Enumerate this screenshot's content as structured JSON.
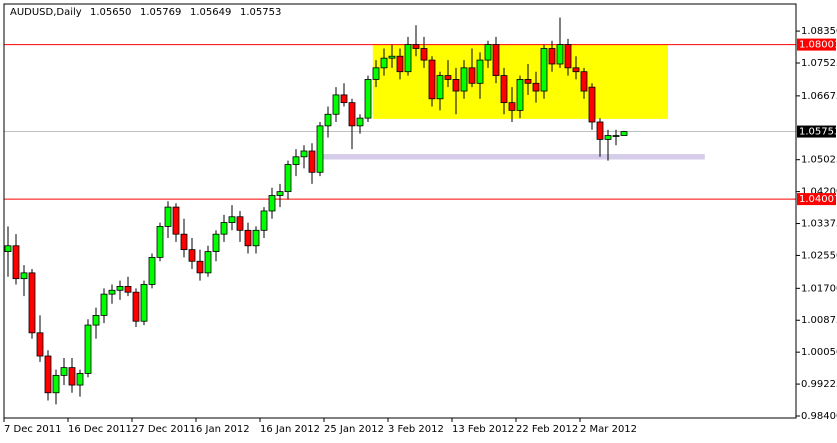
{
  "chart_data": {
    "type": "candlestick",
    "title": "AUDUSD,Daily",
    "info_labels": [
      "1.05650",
      "1.05769",
      "1.05649",
      "1.05753"
    ],
    "categories": [
      "7 Dec 2011",
      null,
      null,
      null,
      null,
      null,
      null,
      null,
      "16 Dec 2011",
      null,
      null,
      null,
      null,
      null,
      null,
      null,
      "27 Dec 2011",
      null,
      null,
      null,
      null,
      null,
      null,
      null,
      "6 Jan 2012",
      null,
      null,
      null,
      null,
      null,
      null,
      null,
      "16 Jan 2012",
      null,
      null,
      null,
      null,
      null,
      null,
      null,
      "25 Jan 2012",
      null,
      null,
      null,
      null,
      null,
      null,
      null,
      "3 Feb 2012",
      null,
      null,
      null,
      null,
      null,
      null,
      null,
      "13 Feb 2012",
      null,
      null,
      null,
      null,
      null,
      null,
      null,
      "22 Feb 2012",
      null,
      null,
      null,
      null,
      null,
      null,
      null,
      "2 Mar 2012",
      null,
      null,
      null,
      null,
      null
    ],
    "open": [
      1.0265,
      1.028,
      1.0195,
      1.021,
      1.0055,
      0.9995,
      0.99,
      0.9945,
      0.9965,
      0.992,
      0.995,
      1.0075,
      1.01,
      1.0155,
      1.0165,
      1.0175,
      1.016,
      1.0085,
      1.018,
      1.025,
      1.033,
      1.038,
      1.031,
      1.027,
      1.024,
      1.021,
      1.0265,
      1.031,
      1.034,
      1.0355,
      1.032,
      1.028,
      1.032,
      1.037,
      1.041,
      1.042,
      1.049,
      1.051,
      1.0525,
      1.047,
      1.059,
      1.062,
      1.067,
      1.065,
      1.059,
      1.061,
      1.071,
      1.074,
      1.0765,
      1.077,
      1.073,
      1.08,
      1.079,
      1.076,
      1.066,
      1.072,
      1.071,
      1.068,
      1.074,
      1.07,
      1.076,
      1.08,
      1.072,
      1.065,
      1.063,
      1.071,
      1.07,
      1.068,
      1.079,
      1.075,
      1.08,
      1.074,
      1.073,
      1.069,
      1.06,
      1.0555,
      1.0565,
      1.0565
    ],
    "high": [
      1.033,
      1.031,
      1.023,
      1.022,
      1.01,
      1.001,
      0.996,
      0.999,
      0.999,
      0.996,
      1.009,
      1.012,
      1.017,
      1.018,
      1.019,
      1.02,
      1.017,
      1.019,
      1.026,
      1.034,
      1.0395,
      1.039,
      1.035,
      1.03,
      1.027,
      1.028,
      1.032,
      1.036,
      1.0385,
      1.037,
      1.034,
      1.033,
      1.038,
      1.043,
      1.044,
      1.05,
      1.053,
      1.054,
      1.0545,
      1.06,
      1.064,
      1.069,
      1.07,
      1.066,
      1.062,
      1.072,
      1.076,
      1.079,
      1.08,
      1.079,
      1.082,
      1.085,
      1.082,
      1.077,
      1.073,
      1.076,
      1.074,
      1.076,
      1.079,
      1.078,
      1.081,
      1.082,
      1.074,
      1.069,
      1.072,
      1.075,
      1.073,
      1.08,
      1.081,
      1.087,
      1.0815,
      1.077,
      1.074,
      1.07,
      1.061,
      1.058,
      1.058,
      1.05769
    ],
    "low": [
      1.02,
      1.018,
      1.015,
      1.004,
      0.998,
      0.988,
      0.987,
      0.992,
      0.99,
      0.989,
      0.994,
      1.004,
      1.008,
      1.013,
      1.014,
      1.015,
      1.007,
      1.0075,
      1.017,
      1.024,
      1.03,
      1.029,
      1.025,
      1.022,
      1.019,
      1.02,
      1.024,
      1.029,
      1.032,
      1.029,
      1.026,
      1.026,
      1.03,
      1.035,
      1.038,
      1.04,
      1.046,
      1.048,
      1.044,
      1.046,
      1.056,
      1.06,
      1.064,
      1.053,
      1.057,
      1.06,
      1.069,
      1.072,
      1.074,
      1.071,
      1.072,
      1.077,
      1.074,
      1.064,
      1.063,
      1.069,
      1.062,
      1.066,
      1.069,
      1.066,
      1.074,
      1.07,
      1.062,
      1.06,
      1.061,
      1.067,
      1.065,
      1.066,
      1.073,
      1.074,
      1.072,
      1.071,
      1.066,
      1.058,
      1.051,
      1.05,
      1.054,
      1.05649
    ],
    "close": [
      1.028,
      1.0195,
      1.021,
      1.0055,
      0.9995,
      0.99,
      0.9945,
      0.9965,
      0.992,
      0.995,
      1.0075,
      1.01,
      1.0155,
      1.0165,
      1.0175,
      1.016,
      1.0085,
      1.018,
      1.025,
      1.033,
      1.038,
      1.031,
      1.027,
      1.024,
      1.021,
      1.0265,
      1.031,
      1.034,
      1.0355,
      1.032,
      1.028,
      1.032,
      1.037,
      1.041,
      1.042,
      1.049,
      1.051,
      1.0525,
      1.047,
      1.059,
      1.062,
      1.067,
      1.065,
      1.059,
      1.061,
      1.071,
      1.074,
      1.0765,
      1.077,
      1.073,
      1.08,
      1.079,
      1.076,
      1.066,
      1.072,
      1.071,
      1.068,
      1.074,
      1.07,
      1.076,
      1.08,
      1.072,
      1.065,
      1.063,
      1.071,
      1.07,
      1.068,
      1.079,
      1.075,
      1.08,
      1.074,
      1.073,
      1.068,
      1.06,
      1.0555,
      1.0565,
      1.0565,
      1.05753
    ],
    "up_color": "#00ff00",
    "down_color": "#ff0000",
    "ylim": [
      0.98348,
      1.0905
    ],
    "yticks": [
      {
        "value": 1.0835,
        "label": "1.08350"
      },
      {
        "value": 1.07525,
        "label": "1.07525"
      },
      {
        "value": 1.06675,
        "label": "1.06675"
      },
      {
        "value": 1.05025,
        "label": "1.05025"
      },
      {
        "value": 1.042,
        "label": "1.04200"
      },
      {
        "value": 1.03375,
        "label": "1.03375"
      },
      {
        "value": 1.0255,
        "label": "1.02550"
      },
      {
        "value": 1.017,
        "label": "1.01700"
      },
      {
        "value": 1.00875,
        "label": "1.00875"
      },
      {
        "value": 1.0005,
        "label": "1.00050"
      },
      {
        "value": 0.99225,
        "label": "0.99225"
      },
      {
        "value": 0.984,
        "label": "0.98400"
      }
    ],
    "hlines": [
      {
        "value": 1.08001,
        "label": "1.08001",
        "color": "#ff0000"
      },
      {
        "value": 1.04007,
        "label": "1.04007",
        "color": "#ff0000"
      },
      {
        "value": 1.05753,
        "label": "1.05753",
        "color": "#c0c0c0"
      }
    ],
    "rectangles": [
      {
        "from": 45.6,
        "to": 82.5,
        "ylim": [
          1.0608,
          1.08001
        ],
        "color": "#ffff00"
      },
      {
        "from": 39.2,
        "to": 87.1,
        "ylim": [
          1.0503,
          1.0517
        ],
        "color": "#d4cce8"
      }
    ]
  }
}
